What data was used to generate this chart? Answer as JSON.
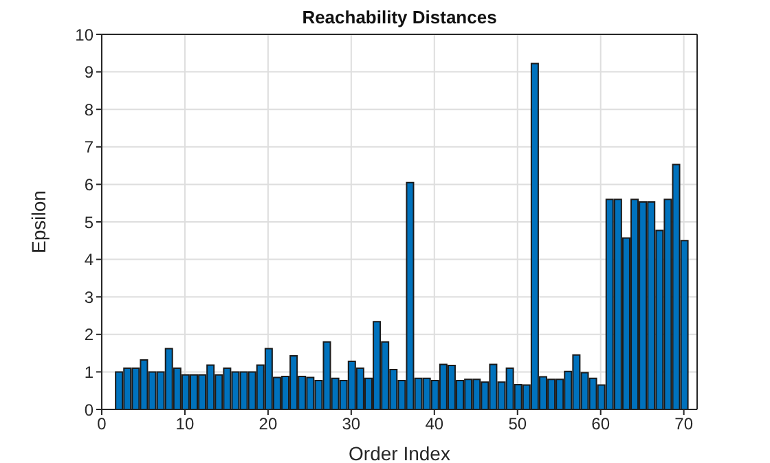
{
  "chart_data": {
    "type": "bar",
    "title": "Reachability Distances",
    "xlabel": "Order Index",
    "ylabel": "Epsilon",
    "x": [
      2,
      3,
      4,
      5,
      6,
      7,
      8,
      9,
      10,
      11,
      12,
      13,
      14,
      15,
      16,
      17,
      18,
      19,
      20,
      21,
      22,
      23,
      24,
      25,
      26,
      27,
      28,
      29,
      30,
      31,
      32,
      33,
      34,
      35,
      36,
      37,
      38,
      39,
      40,
      41,
      42,
      43,
      44,
      45,
      46,
      47,
      48,
      49,
      50,
      51,
      52,
      53,
      54,
      55,
      56,
      57,
      58,
      59,
      60,
      61,
      62,
      63,
      64,
      65,
      66,
      67,
      68,
      69,
      70
    ],
    "values": [
      1.0,
      1.1,
      1.1,
      1.32,
      1.0,
      1.0,
      1.62,
      1.1,
      0.92,
      0.92,
      0.92,
      1.18,
      0.92,
      1.1,
      1.0,
      1.0,
      1.0,
      1.18,
      1.62,
      0.85,
      0.88,
      1.43,
      0.88,
      0.85,
      0.77,
      1.8,
      0.83,
      0.77,
      1.28,
      1.1,
      0.83,
      2.34,
      1.8,
      1.06,
      0.77,
      6.05,
      0.83,
      0.83,
      0.77,
      1.2,
      1.17,
      0.77,
      0.8,
      0.8,
      0.73,
      1.2,
      0.73,
      1.1,
      0.66,
      0.65,
      9.22,
      0.87,
      0.8,
      0.8,
      1.01,
      1.45,
      0.98,
      0.83,
      0.65,
      5.6,
      5.6,
      4.57,
      5.6,
      5.53,
      5.53,
      4.77,
      5.6,
      6.53,
      4.5
    ],
    "color": "#0072bd",
    "xlim": [
      0,
      71.6
    ],
    "xticks": [
      0,
      10,
      20,
      30,
      40,
      50,
      60,
      70
    ],
    "ylim": [
      0,
      10
    ],
    "yticks": [
      0,
      1,
      2,
      3,
      4,
      5,
      6,
      7,
      8,
      9,
      10
    ],
    "grid": true
  }
}
